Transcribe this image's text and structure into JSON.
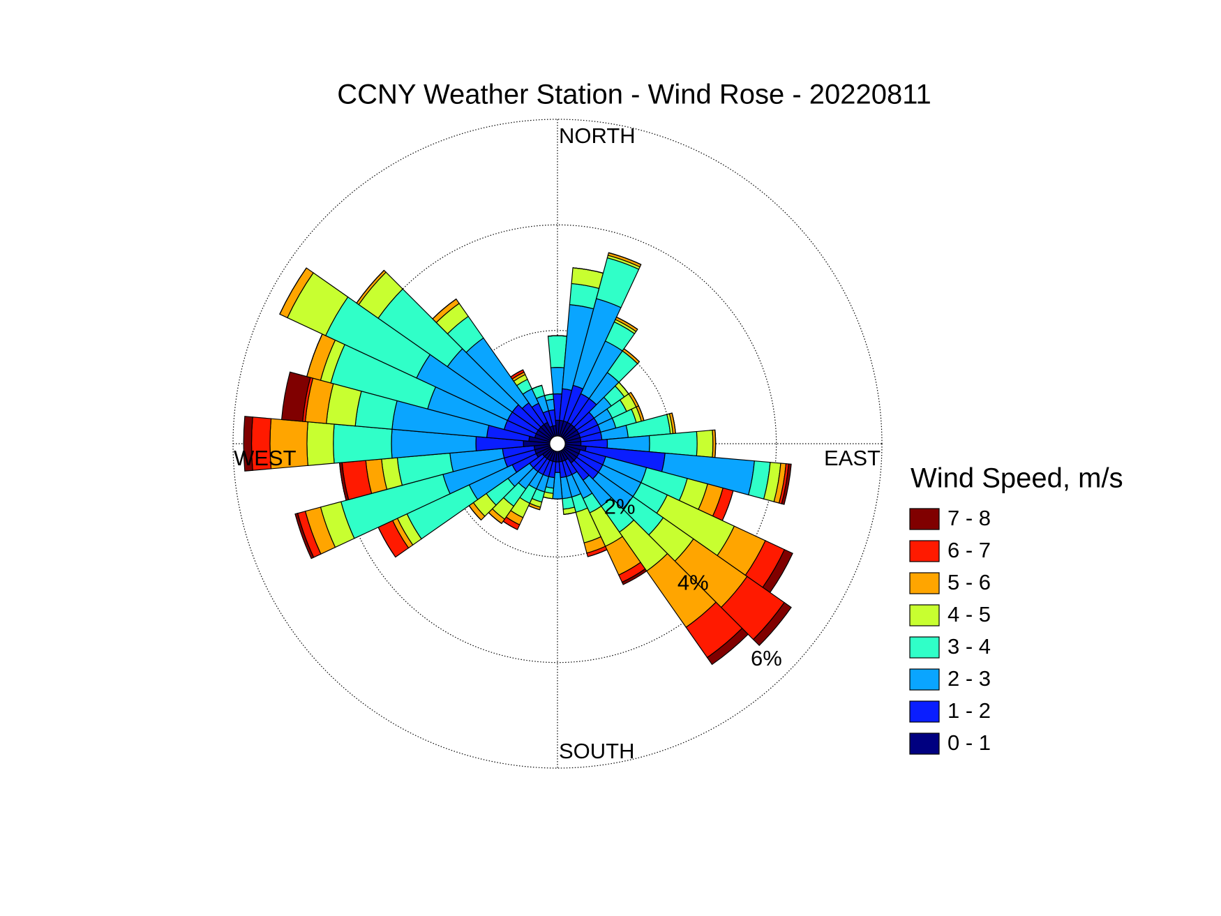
{
  "chart_data": {
    "type": "windrose",
    "title": "CCNY Weather Station - Wind Rose - 20220811",
    "legend_title": "Wind Speed, m/s",
    "direction_labels": [
      "NORTH",
      "EAST",
      "SOUTH",
      "WEST"
    ],
    "x": [
      0,
      10,
      20,
      30,
      40,
      50,
      60,
      70,
      80,
      90,
      100,
      110,
      120,
      130,
      140,
      150,
      160,
      170,
      180,
      190,
      200,
      210,
      220,
      230,
      240,
      250,
      260,
      270,
      280,
      290,
      300,
      310,
      320,
      330,
      340,
      350
    ],
    "rlim": [
      0,
      6
    ],
    "rticks": [
      {
        "value": 2,
        "label": "2%"
      },
      {
        "value": 4,
        "label": "4%"
      },
      {
        "value": 6,
        "label": "6%"
      }
    ],
    "grid": true,
    "series": [
      {
        "name": "0 - 1",
        "color": "#000080",
        "values": [
          0.3,
          0.3,
          0.3,
          0.3,
          0.3,
          0.3,
          0.3,
          0.3,
          0.3,
          0.3,
          0.4,
          0.3,
          0.3,
          0.3,
          0.3,
          0.2,
          0.2,
          0.2,
          0.2,
          0.2,
          0.2,
          0.2,
          0.2,
          0.2,
          0.3,
          0.3,
          0.3,
          0.5,
          0.4,
          0.3,
          0.3,
          0.3,
          0.3,
          0.3,
          0.2,
          0.2
        ]
      },
      {
        "name": "1 - 2",
        "color": "#0a1eff",
        "values": [
          0.5,
          0.6,
          0.7,
          0.6,
          0.6,
          0.4,
          0.4,
          0.4,
          0.4,
          0.5,
          1.5,
          0.5,
          0.5,
          0.5,
          0.4,
          0.3,
          0.3,
          0.3,
          0.2,
          0.3,
          0.3,
          0.3,
          0.3,
          0.3,
          0.5,
          0.6,
          0.6,
          0.9,
          0.8,
          0.6,
          0.6,
          0.6,
          0.5,
          0.4,
          0.3,
          0.3
        ]
      },
      {
        "name": "2 - 3",
        "color": "#0aa5ff",
        "values": [
          0.5,
          1.6,
          1.7,
          1.1,
          0.6,
          0.4,
          0.3,
          0.3,
          0.5,
          0.8,
          1.7,
          0.8,
          0.8,
          0.8,
          0.6,
          0.5,
          0.4,
          0.4,
          0.5,
          0.2,
          0.3,
          0.3,
          0.4,
          0.5,
          0.9,
          1.2,
          1.0,
          1.6,
          1.8,
          1.5,
          1.9,
          1.5,
          1.5,
          0.3,
          0.3,
          0.2
        ]
      },
      {
        "name": "3 - 4",
        "color": "#30ffc8",
        "values": [
          0.6,
          0.4,
          0.8,
          0.4,
          0.5,
          0.3,
          0.3,
          0.4,
          0.8,
          0.9,
          0.3,
          0.8,
          0.55,
          0.7,
          0.6,
          0.3,
          0.3,
          0.2,
          0,
          0.1,
          0.2,
          0.3,
          0.4,
          0.5,
          1.3,
          2.0,
          1.0,
          1.1,
          0.7,
          1.9,
          1.9,
          1.6,
          0.5,
          0.2,
          0.2,
          0.1
        ]
      },
      {
        "name": "4 - 5",
        "color": "#c8ff30",
        "values": [
          0,
          0.3,
          0.05,
          0.05,
          0,
          0.1,
          0.2,
          0.1,
          0.05,
          0.3,
          0.2,
          0.4,
          1.4,
          0.7,
          0.9,
          0.7,
          0.6,
          0.1,
          0,
          0.1,
          0.1,
          0.3,
          0.3,
          0.3,
          0.2,
          0.4,
          0.3,
          0.5,
          0.55,
          0.2,
          0.8,
          0.45,
          0.3,
          0.1,
          0,
          0
        ]
      },
      {
        "name": "5 - 6",
        "color": "#ffa500",
        "values": [
          0,
          0,
          0.05,
          0.05,
          0.05,
          0,
          0.05,
          0.05,
          0.05,
          0.05,
          0.1,
          0.3,
          0.65,
          1.24,
          1.3,
          0.6,
          0.2,
          0,
          0,
          0,
          0.05,
          0.15,
          0.1,
          0.1,
          0.1,
          0.3,
          0.3,
          0.7,
          0.4,
          0.27,
          0.16,
          0.05,
          0.1,
          0.05,
          0,
          0
        ]
      },
      {
        "name": "6 - 7",
        "color": "#ff1a00",
        "values": [
          0,
          0,
          0,
          0,
          0,
          0,
          0,
          0,
          0,
          0,
          0.05,
          0.2,
          0.4,
          0.86,
          0.7,
          0.15,
          0.07,
          0,
          0,
          0,
          0,
          0.1,
          0,
          0,
          0.3,
          0.15,
          0.45,
          0.35,
          0.05,
          0,
          0,
          0,
          0,
          0.05,
          0,
          0
        ]
      },
      {
        "name": "7 - 8",
        "color": "#800000",
        "values": [
          0,
          0,
          0,
          0,
          0,
          0,
          0,
          0,
          0,
          0,
          0.05,
          0,
          0.17,
          0.16,
          0.16,
          0.05,
          0,
          0,
          0,
          0,
          0,
          0,
          0,
          0,
          0,
          0.05,
          0.05,
          0.15,
          0.4,
          0,
          0,
          0,
          0,
          0,
          0,
          0
        ]
      }
    ]
  }
}
